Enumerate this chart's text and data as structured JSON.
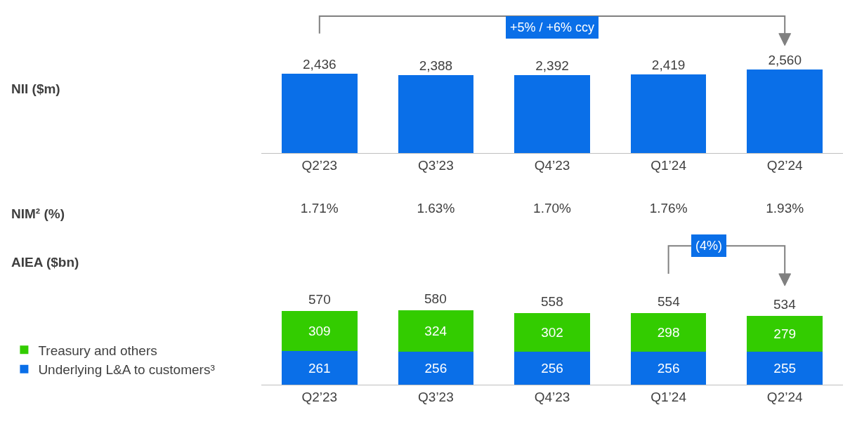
{
  "chart_data": [
    {
      "type": "bar",
      "ylabel": "NII ($m)",
      "categories": [
        "Q2’23",
        "Q3’23",
        "Q4’23",
        "Q1’24",
        "Q2’24"
      ],
      "values": [
        2436,
        2388,
        2392,
        2419,
        2560
      ],
      "value_labels": [
        "2,436",
        "2,388",
        "2,392",
        "2,419",
        "2,560"
      ],
      "color": "#0a6fe8",
      "data_labels": true,
      "annotations": [
        "+5% / +6% ccy"
      ]
    },
    {
      "type": "other",
      "title": "NIM² (%)",
      "values": [
        1.71,
        1.63,
        1.7,
        1.76,
        1.93
      ],
      "value_labels": [
        "1.71%",
        "1.63%",
        "1.70%",
        "1.76%",
        "1.93%"
      ]
    },
    {
      "type": "bar",
      "ylabel": "AIEA ($bn)",
      "stacked": true,
      "categories": [
        "Q2’23",
        "Q3’23",
        "Q4’23",
        "Q1’24",
        "Q2’24"
      ],
      "data_labels": true,
      "legend": "bottom left",
      "totals": [
        "570",
        "580",
        "558",
        "554",
        "534"
      ],
      "annotations": [
        "(4%)"
      ],
      "series": [
        {
          "name": "Underlying L&A to customers³",
          "color": "#0a6fe8",
          "values": [
            261,
            256,
            256,
            256,
            255
          ]
        },
        {
          "name": "Treasury and others",
          "color": "#33cc00",
          "values": [
            309,
            324,
            302,
            298,
            279
          ]
        }
      ]
    }
  ]
}
